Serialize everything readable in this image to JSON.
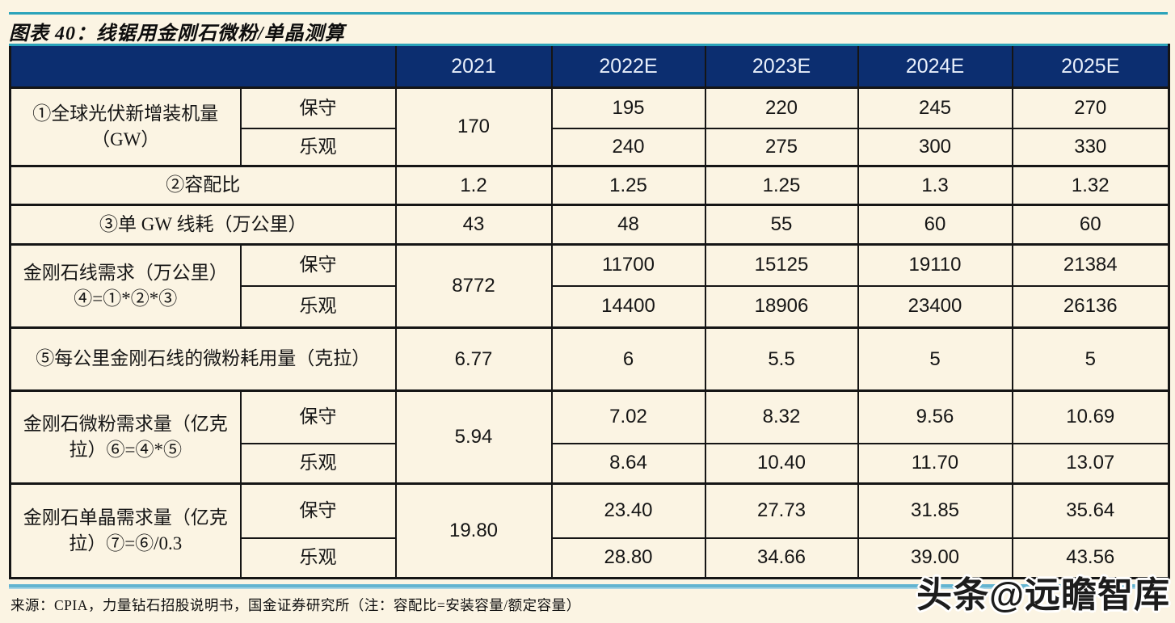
{
  "title": "图表 40：线锯用金刚石微粉/单晶测算",
  "table": {
    "corner": "",
    "years": [
      "2021",
      "2022E",
      "2023E",
      "2024E",
      "2025E"
    ],
    "scenario_conservative": "保守",
    "scenario_optimistic": "乐观",
    "rows": [
      {
        "label": "①全球光伏新增装机量（GW）",
        "v2021": "170",
        "conservative": [
          "195",
          "220",
          "245",
          "270"
        ],
        "optimistic": [
          "240",
          "275",
          "300",
          "330"
        ]
      },
      {
        "label": "②容配比",
        "v2021": "1.2",
        "values": [
          "1.25",
          "1.25",
          "1.3",
          "1.32"
        ]
      },
      {
        "label": "③单 GW 线耗（万公里）",
        "v2021": "43",
        "values": [
          "48",
          "55",
          "60",
          "60"
        ]
      },
      {
        "label": "金刚石线需求（万公里）④=①*②*③",
        "v2021": "8772",
        "conservative": [
          "11700",
          "15125",
          "19110",
          "21384"
        ],
        "optimistic": [
          "14400",
          "18906",
          "23400",
          "26136"
        ]
      },
      {
        "label": "⑤每公里金刚石线的微粉耗用量（克拉）",
        "v2021": "6.77",
        "values": [
          "6",
          "5.5",
          "5",
          "5"
        ]
      },
      {
        "label": "金刚石微粉需求量（亿克拉）⑥=④*⑤",
        "v2021": "5.94",
        "conservative": [
          "7.02",
          "8.32",
          "9.56",
          "10.69"
        ],
        "optimistic": [
          "8.64",
          "10.40",
          "11.70",
          "13.07"
        ]
      },
      {
        "label": "金刚石单晶需求量（亿克拉）⑦=⑥/0.3",
        "v2021": "19.80",
        "conservative": [
          "23.40",
          "27.73",
          "31.85",
          "35.64"
        ],
        "optimistic": [
          "28.80",
          "34.66",
          "39.00",
          "43.56"
        ]
      }
    ]
  },
  "source": "来源：CPIA，力量钻石招股说明书，国金证券研究所（注：容配比=安装容量/额定容量）",
  "watermark": "头条@远瞻智库",
  "colors": {
    "background": "#fbf4e3",
    "header_bg": "#0c2e70",
    "header_text": "#e9f0fb",
    "accent_teal": "#2ba3ba",
    "bottom_rule": "#63b4d0",
    "border": "#151515"
  }
}
